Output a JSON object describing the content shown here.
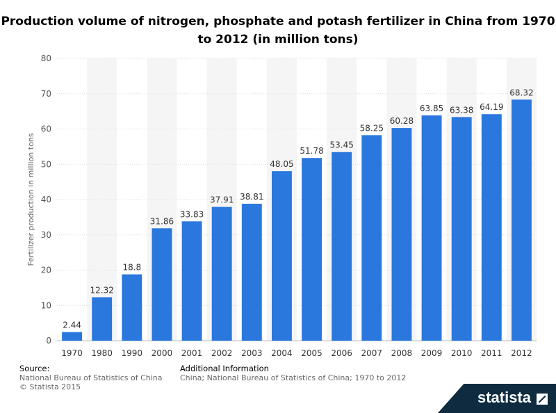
{
  "title": "Production volume of nitrogen, phosphate and potash fertilizer in China from 1970 to 2012 (in million tons)",
  "footer": {
    "source_heading": "Source:",
    "source_line1": "National Bureau of Statistics of China",
    "source_line2": "© Statista 2015",
    "info_heading": "Additional Information",
    "info_text": "China; National Bureau of Statistics of China; 1970 to 2012",
    "brand": "statista"
  },
  "colors": {
    "bar": "#2a77dd",
    "band": "#f5f5f5",
    "brand_bg": "#0e2b40"
  },
  "chart_data": {
    "type": "bar",
    "categories": [
      "1970",
      "1980",
      "1990",
      "2000",
      "2001",
      "2002",
      "2003",
      "2004",
      "2005",
      "2006",
      "2007",
      "2008",
      "2009",
      "2010",
      "2011",
      "2012"
    ],
    "values": [
      2.44,
      12.32,
      18.8,
      31.86,
      33.83,
      37.91,
      38.81,
      48.05,
      51.78,
      53.45,
      58.25,
      60.28,
      63.85,
      63.38,
      64.19,
      68.32
    ],
    "data_labels": [
      "2.44",
      "12.32",
      "18.8",
      "31.86",
      "33.83",
      "37.91",
      "38.81",
      "48.05",
      "51.78",
      "53.45",
      "58.25",
      "60.28",
      "63.85",
      "63.38",
      "64.19",
      "68.32"
    ],
    "ylabel": "Fertilizer production in million tons",
    "xlabel": "",
    "ylim": [
      0,
      80
    ],
    "yticks": [
      0,
      10,
      20,
      30,
      40,
      50,
      60,
      70,
      80
    ],
    "grid": true,
    "legend": "none"
  }
}
